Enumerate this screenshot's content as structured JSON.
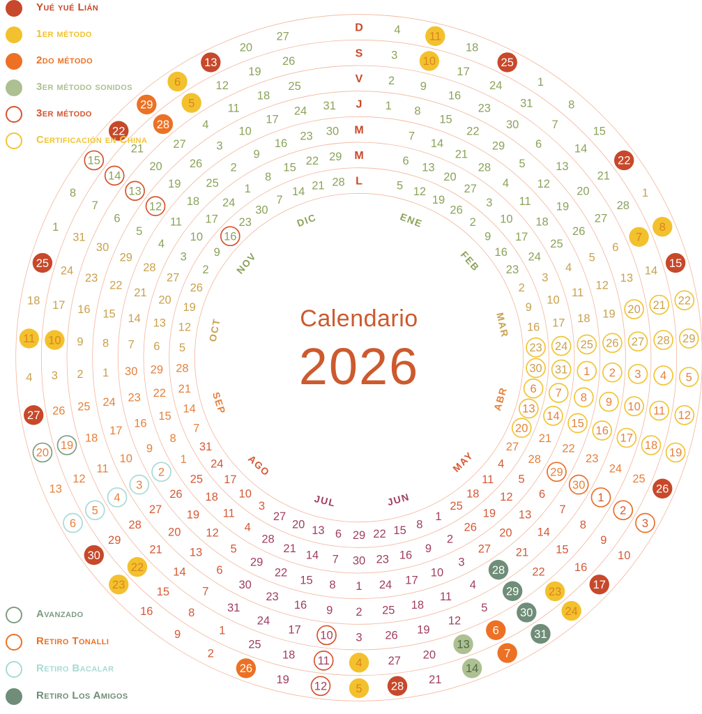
{
  "title": {
    "line1": "Calendario",
    "line2": "2026",
    "color": "#cc5a2e"
  },
  "legend_top": [
    {
      "label": "Yué yué Lián",
      "style": "filled",
      "color": "#c7482a"
    },
    {
      "label": "1er método",
      "style": "filled",
      "color": "#f3c12d"
    },
    {
      "label": "2do método",
      "style": "filled",
      "color": "#ec7124"
    },
    {
      "label": "3er método sonidos",
      "style": "filled",
      "color": "#acc091"
    },
    {
      "label": "3er método",
      "style": "outline",
      "color": "#d5542e"
    },
    {
      "label": "Certificación en China",
      "style": "outline",
      "color": "#f1c436"
    }
  ],
  "legend_bottom": [
    {
      "label": "Avanzado",
      "style": "outline",
      "color": "#7e9c83"
    },
    {
      "label": "Retiro Tonalli",
      "style": "outline",
      "color": "#ec7124"
    },
    {
      "label": "Retiro Bacalar",
      "style": "outline",
      "color": "#a8dad6"
    },
    {
      "label": "Retiro Los Amigos",
      "style": "filled",
      "color": "#6f8d78"
    }
  ],
  "calendar": {
    "year": 2026,
    "jan1_weekday": 3,
    "month_days": [
      31,
      28,
      31,
      30,
      31,
      30,
      31,
      31,
      30,
      31,
      30,
      31
    ],
    "month_labels": [
      "ENE",
      "FEB",
      "MAR",
      "ABR",
      "MAY",
      "JUN",
      "JUL",
      "AGO",
      "SEP",
      "OCT",
      "NOV",
      "DIC"
    ],
    "month_colors": [
      "#8ca25a",
      "#8ca25a",
      "#c9a14e",
      "#e5813b",
      "#d45936",
      "#a03e5f",
      "#a03e5f",
      "#d45936",
      "#e5813b",
      "#c9a14e",
      "#8ca25a",
      "#8ca25a"
    ],
    "weekday_labels": [
      "L",
      "M",
      "M",
      "J",
      "V",
      "S",
      "D"
    ],
    "weekday_label_color": "#c8492b",
    "ring_line_color": "#f2b49b",
    "categories": {
      "yue_yue_lian": {
        "style": "filled",
        "color": "#c7482a",
        "text": "#ffffff"
      },
      "metodo_1": {
        "style": "filled",
        "color": "#f3c12d",
        "text": "#d98420"
      },
      "metodo_2": {
        "style": "filled",
        "color": "#ec7124",
        "text": "#ffffff"
      },
      "metodo_3_sonidos": {
        "style": "filled",
        "color": "#acc091",
        "text": "#4d6847"
      },
      "metodo_3": {
        "style": "outline",
        "color": "#d5542e"
      },
      "certificacion_china": {
        "style": "outline",
        "color": "#f1c436"
      },
      "avanzado": {
        "style": "outline",
        "color": "#7e9c83"
      },
      "retiro_tonalli": {
        "style": "outline",
        "color": "#e8702a"
      },
      "retiro_bacalar": {
        "style": "outline",
        "color": "#a8dad6"
      },
      "retiro_los_amigos": {
        "style": "filled",
        "color": "#6f8d78",
        "text": "#ffffff"
      }
    },
    "events": {
      "yue_yue_lian": [
        "1-25",
        "2-22",
        "3-15",
        "4-26",
        "5-17",
        "6-28",
        "8-30",
        "9-27",
        "10-25",
        "11-22",
        "12-13"
      ],
      "metodo_1": [
        "1-10",
        "1-11",
        "3-7",
        "3-8",
        "5-23",
        "5-24",
        "7-4",
        "7-5",
        "8-22",
        "8-23",
        "10-10",
        "10-11",
        "12-5",
        "12-6"
      ],
      "metodo_2": [
        "6-6",
        "6-7",
        "7-26",
        "11-28",
        "11-29"
      ],
      "metodo_3_sonidos": [
        "6-13",
        "6-14"
      ],
      "metodo_3": [
        "7-10",
        "7-11",
        "7-12",
        "11-12",
        "11-13",
        "11-14",
        "11-15",
        "11-16"
      ],
      "certificacion_china": [
        "3-20",
        "3-21",
        "3-22",
        "3-23",
        "3-24",
        "3-25",
        "3-26",
        "3-27",
        "3-28",
        "3-29",
        "3-30",
        "3-31",
        "4-1",
        "4-2",
        "4-3",
        "4-4",
        "4-5",
        "4-6",
        "4-7",
        "4-8",
        "4-9",
        "4-10",
        "4-11",
        "4-12",
        "4-13",
        "4-14",
        "4-15",
        "4-16",
        "4-17",
        "4-18",
        "4-19",
        "4-20"
      ],
      "avanzado": [
        "9-19",
        "9-20"
      ],
      "retiro_tonalli": [
        "4-29",
        "4-30",
        "5-1",
        "5-2",
        "5-3"
      ],
      "retiro_bacalar": [
        "9-2",
        "9-3",
        "9-4",
        "9-5",
        "9-6"
      ],
      "retiro_los_amigos": [
        "5-28",
        "5-29",
        "5-30",
        "5-31"
      ]
    }
  }
}
